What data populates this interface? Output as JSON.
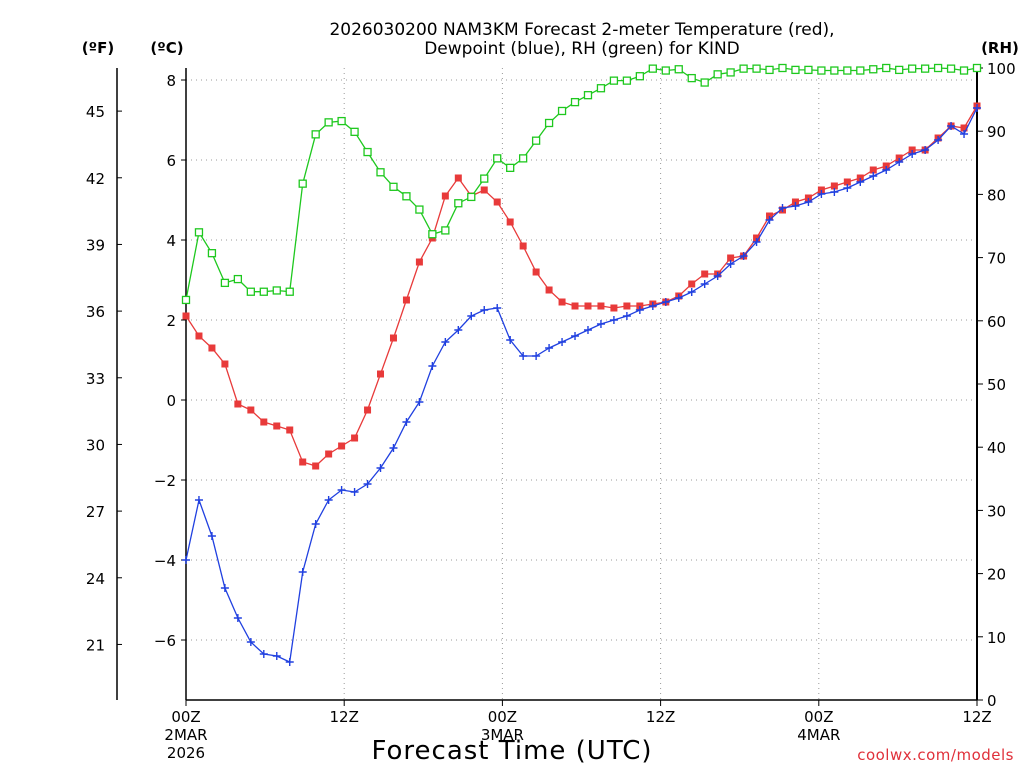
{
  "chart_data": {
    "type": "line",
    "title_line1": "2026030200 NAM3KM Forecast 2-meter Temperature (red),",
    "title_line2": "Dewpoint (blue), RH (green) for KIND",
    "units": {
      "f": "(ºF)",
      "c": "(ºC)",
      "rh": "(RH)"
    },
    "xlabel": "Forecast Time (UTC)",
    "credit": "coolwx.com/models",
    "x_ticks": [
      {
        "hour": 0,
        "l1": "00Z",
        "l2": "2MAR",
        "l3": "2026"
      },
      {
        "hour": 12,
        "l1": "12Z",
        "l2": "",
        "l3": ""
      },
      {
        "hour": 24,
        "l1": "00Z",
        "l2": "3MAR",
        "l3": ""
      },
      {
        "hour": 36,
        "l1": "12Z",
        "l2": "",
        "l3": ""
      },
      {
        "hour": 48,
        "l1": "00Z",
        "l2": "4MAR",
        "l3": ""
      },
      {
        "hour": 60,
        "l1": "12Z",
        "l2": "",
        "l3": ""
      }
    ],
    "xlim": [
      0,
      60
    ],
    "celsius_lim": [
      -7.5,
      8.3
    ],
    "celsius_ticks": [
      "−6",
      "−4",
      "−2",
      "0",
      "2",
      "4",
      "6",
      "8"
    ],
    "fahrenheit_ticks": [
      "21",
      "24",
      "27",
      "30",
      "33",
      "36",
      "39",
      "42",
      "45"
    ],
    "rh_lim": [
      0,
      100
    ],
    "rh_ticks": [
      "0",
      "10",
      "20",
      "30",
      "40",
      "50",
      "60",
      "70",
      "80",
      "90",
      "100"
    ],
    "series": [
      {
        "name": "2-meter Temperature",
        "unit": "C",
        "color": "#e83a3a",
        "marker": "filled-square",
        "values": [
          2.1,
          1.6,
          1.3,
          0.9,
          -0.1,
          -0.25,
          -0.55,
          -0.65,
          -0.75,
          -1.55,
          -1.65,
          -1.35,
          -1.15,
          -0.95,
          -0.25,
          0.65,
          1.55,
          2.5,
          3.45,
          4.05,
          5.1,
          5.55,
          5.1,
          5.25,
          4.95,
          4.45,
          3.85,
          3.2,
          2.75,
          2.45,
          2.35,
          2.35,
          2.35,
          2.3,
          2.35,
          2.35,
          2.4,
          2.45,
          2.6,
          2.9,
          3.15,
          3.15,
          3.55,
          3.6,
          4.05,
          4.6,
          4.75,
          4.95,
          5.05,
          5.25,
          5.35,
          5.45,
          5.55,
          5.75,
          5.85,
          6.05,
          6.25,
          6.25,
          6.55,
          6.85,
          6.8,
          7.35
        ]
      },
      {
        "name": "Dewpoint",
        "unit": "C",
        "color": "#2040e0",
        "marker": "plus",
        "values": [
          -4.0,
          -2.5,
          -3.4,
          -4.7,
          -5.45,
          -6.05,
          -6.35,
          -6.4,
          -6.55,
          -4.3,
          -3.1,
          -2.5,
          -2.25,
          -2.3,
          -2.1,
          -1.7,
          -1.2,
          -0.55,
          -0.05,
          0.85,
          1.45,
          1.75,
          2.1,
          2.25,
          2.3,
          1.5,
          1.1,
          1.1,
          1.3,
          1.45,
          1.6,
          1.75,
          1.9,
          2.0,
          2.1,
          2.25,
          2.35,
          2.45,
          2.55,
          2.7,
          2.9,
          3.1,
          3.4,
          3.6,
          3.95,
          4.5,
          4.8,
          4.85,
          4.95,
          5.15,
          5.2,
          5.3,
          5.45,
          5.6,
          5.75,
          5.95,
          6.15,
          6.25,
          6.5,
          6.85,
          6.65,
          7.3
        ]
      },
      {
        "name": "RH",
        "unit": "%",
        "color": "#1ec81e",
        "marker": "open-square",
        "values": [
          63.3,
          74.0,
          70.7,
          66.0,
          66.6,
          64.6,
          64.6,
          64.8,
          64.6,
          81.7,
          89.5,
          91.4,
          91.6,
          89.9,
          86.7,
          83.5,
          81.2,
          79.7,
          77.6,
          73.7,
          74.3,
          78.6,
          79.6,
          82.5,
          85.7,
          84.2,
          85.7,
          88.5,
          91.3,
          93.2,
          94.6,
          95.7,
          96.8,
          98.0,
          98.0,
          98.7,
          99.9,
          99.6,
          99.8,
          98.4,
          97.7,
          99.0,
          99.3,
          99.9,
          99.9,
          99.7,
          100.0,
          99.7,
          99.7,
          99.6,
          99.6,
          99.6,
          99.6,
          99.8,
          100.0,
          99.7,
          99.9,
          99.9,
          100.0,
          99.9,
          99.6,
          100.0
        ]
      }
    ]
  }
}
